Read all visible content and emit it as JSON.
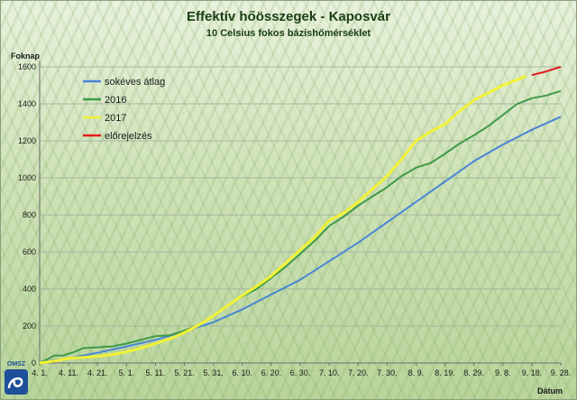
{
  "chart_data": {
    "type": "line",
    "title": "Effektív hőösszegek - Kaposvár",
    "subtitle": "10 Celsius fokos bázishőmérséklet",
    "ylabel": "Foknap",
    "xlabel": "Dátum",
    "ylim": [
      0,
      1600
    ],
    "yticks": [
      0,
      200,
      400,
      600,
      800,
      1000,
      1200,
      1400,
      1600
    ],
    "grid": true,
    "legend_position": "top-left",
    "x_range": [
      0,
      180
    ],
    "x_tick_labels": [
      {
        "label": "4. 1.",
        "day": 0
      },
      {
        "label": "4. 11.",
        "day": 10
      },
      {
        "label": "4. 21.",
        "day": 20
      },
      {
        "label": "5. 1.",
        "day": 30
      },
      {
        "label": "5. 11.",
        "day": 40
      },
      {
        "label": "5. 21.",
        "day": 50
      },
      {
        "label": "5. 31.",
        "day": 60
      },
      {
        "label": "6. 10.",
        "day": 70
      },
      {
        "label": "6. 20.",
        "day": 80
      },
      {
        "label": "6. 30.",
        "day": 90
      },
      {
        "label": "7. 10.",
        "day": 100
      },
      {
        "label": "7. 20.",
        "day": 110
      },
      {
        "label": "7. 30.",
        "day": 120
      },
      {
        "label": "8. 9.",
        "day": 130
      },
      {
        "label": "8. 19.",
        "day": 140
      },
      {
        "label": "8. 29.",
        "day": 150
      },
      {
        "label": "9. 8.",
        "day": 160
      },
      {
        "label": "9. 18.",
        "day": 170
      },
      {
        "label": "9. 28.",
        "day": 180
      }
    ],
    "series": [
      {
        "name": "sokéves átlag",
        "color": "#4a86d4",
        "points": [
          [
            0,
            5
          ],
          [
            10,
            25
          ],
          [
            20,
            55
          ],
          [
            30,
            90
          ],
          [
            40,
            125
          ],
          [
            50,
            170
          ],
          [
            60,
            220
          ],
          [
            70,
            290
          ],
          [
            80,
            370
          ],
          [
            90,
            450
          ],
          [
            100,
            550
          ],
          [
            110,
            650
          ],
          [
            120,
            760
          ],
          [
            130,
            870
          ],
          [
            140,
            980
          ],
          [
            150,
            1090
          ],
          [
            160,
            1180
          ],
          [
            170,
            1260
          ],
          [
            180,
            1330
          ]
        ]
      },
      {
        "name": "2016",
        "color": "#3f9a47",
        "points": [
          [
            0,
            0
          ],
          [
            2,
            15
          ],
          [
            5,
            40
          ],
          [
            8,
            40
          ],
          [
            12,
            60
          ],
          [
            15,
            80
          ],
          [
            20,
            85
          ],
          [
            25,
            90
          ],
          [
            30,
            105
          ],
          [
            35,
            125
          ],
          [
            40,
            145
          ],
          [
            45,
            150
          ],
          [
            50,
            175
          ],
          [
            55,
            205
          ],
          [
            60,
            255
          ],
          [
            65,
            310
          ],
          [
            70,
            360
          ],
          [
            75,
            400
          ],
          [
            80,
            460
          ],
          [
            85,
            520
          ],
          [
            90,
            590
          ],
          [
            95,
            660
          ],
          [
            100,
            740
          ],
          [
            105,
            790
          ],
          [
            110,
            850
          ],
          [
            115,
            900
          ],
          [
            120,
            950
          ],
          [
            125,
            1010
          ],
          [
            130,
            1055
          ],
          [
            135,
            1080
          ],
          [
            140,
            1130
          ],
          [
            145,
            1185
          ],
          [
            150,
            1230
          ],
          [
            155,
            1280
          ],
          [
            160,
            1340
          ],
          [
            165,
            1400
          ],
          [
            170,
            1430
          ],
          [
            175,
            1445
          ],
          [
            180,
            1470
          ]
        ]
      },
      {
        "name": "2017",
        "color": "#f2f236",
        "points": [
          [
            0,
            0
          ],
          [
            5,
            10
          ],
          [
            10,
            25
          ],
          [
            15,
            30
          ],
          [
            20,
            35
          ],
          [
            25,
            45
          ],
          [
            30,
            60
          ],
          [
            35,
            80
          ],
          [
            40,
            105
          ],
          [
            45,
            130
          ],
          [
            50,
            165
          ],
          [
            55,
            205
          ],
          [
            60,
            255
          ],
          [
            65,
            310
          ],
          [
            70,
            365
          ],
          [
            75,
            415
          ],
          [
            80,
            470
          ],
          [
            85,
            540
          ],
          [
            90,
            610
          ],
          [
            95,
            680
          ],
          [
            100,
            770
          ],
          [
            105,
            810
          ],
          [
            110,
            870
          ],
          [
            115,
            940
          ],
          [
            120,
            1010
          ],
          [
            125,
            1100
          ],
          [
            130,
            1200
          ],
          [
            135,
            1250
          ],
          [
            140,
            1290
          ],
          [
            145,
            1360
          ],
          [
            150,
            1420
          ],
          [
            155,
            1460
          ],
          [
            160,
            1500
          ],
          [
            165,
            1530
          ],
          [
            168,
            1550
          ]
        ]
      },
      {
        "name": "előrejelzés",
        "color": "#e31a1c",
        "points": [
          [
            170,
            1555
          ],
          [
            175,
            1575
          ],
          [
            180,
            1600
          ]
        ]
      }
    ]
  },
  "logo": {
    "text": "OMSZ"
  }
}
